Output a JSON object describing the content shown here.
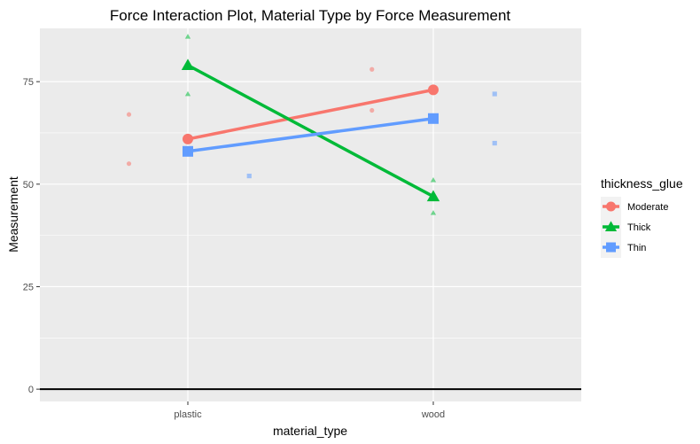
{
  "chart_data": {
    "type": "line",
    "title": "Force Interaction Plot, Material Type by Force Measurement",
    "xlabel": "material_type",
    "ylabel": "Measurement",
    "categories": [
      "plastic",
      "wood"
    ],
    "ylim": [
      -3,
      88
    ],
    "yticks": [
      0,
      25,
      50,
      75
    ],
    "ytick_labels": [
      "0",
      "25",
      "50",
      "75"
    ],
    "grid": true,
    "hline": 0,
    "legend": {
      "title": "thickness_glue",
      "placement": "right"
    },
    "series": [
      {
        "name": "Moderate",
        "color": "#F8766D",
        "shape": "circle",
        "means": [
          61,
          73
        ],
        "points": [
          {
            "x": "plastic",
            "y": 67,
            "jitter": -0.24
          },
          {
            "x": "plastic",
            "y": 55,
            "jitter": -0.24
          },
          {
            "x": "wood",
            "y": 78,
            "jitter": -0.25
          },
          {
            "x": "wood",
            "y": 68,
            "jitter": -0.25
          }
        ]
      },
      {
        "name": "Thick",
        "color": "#00BA38",
        "shape": "triangle",
        "means": [
          79,
          47
        ],
        "points": [
          {
            "x": "plastic",
            "y": 86,
            "jitter": 0.0
          },
          {
            "x": "plastic",
            "y": 72,
            "jitter": 0.0
          },
          {
            "x": "wood",
            "y": 51,
            "jitter": 0.0
          },
          {
            "x": "wood",
            "y": 43,
            "jitter": 0.0
          }
        ]
      },
      {
        "name": "Thin",
        "color": "#619CFF",
        "shape": "square",
        "means": [
          58,
          66
        ],
        "points": [
          {
            "x": "plastic",
            "y": 52,
            "jitter": 0.25
          },
          {
            "x": "wood",
            "y": 72,
            "jitter": 0.25
          },
          {
            "x": "wood",
            "y": 60,
            "jitter": 0.25
          }
        ]
      }
    ]
  }
}
